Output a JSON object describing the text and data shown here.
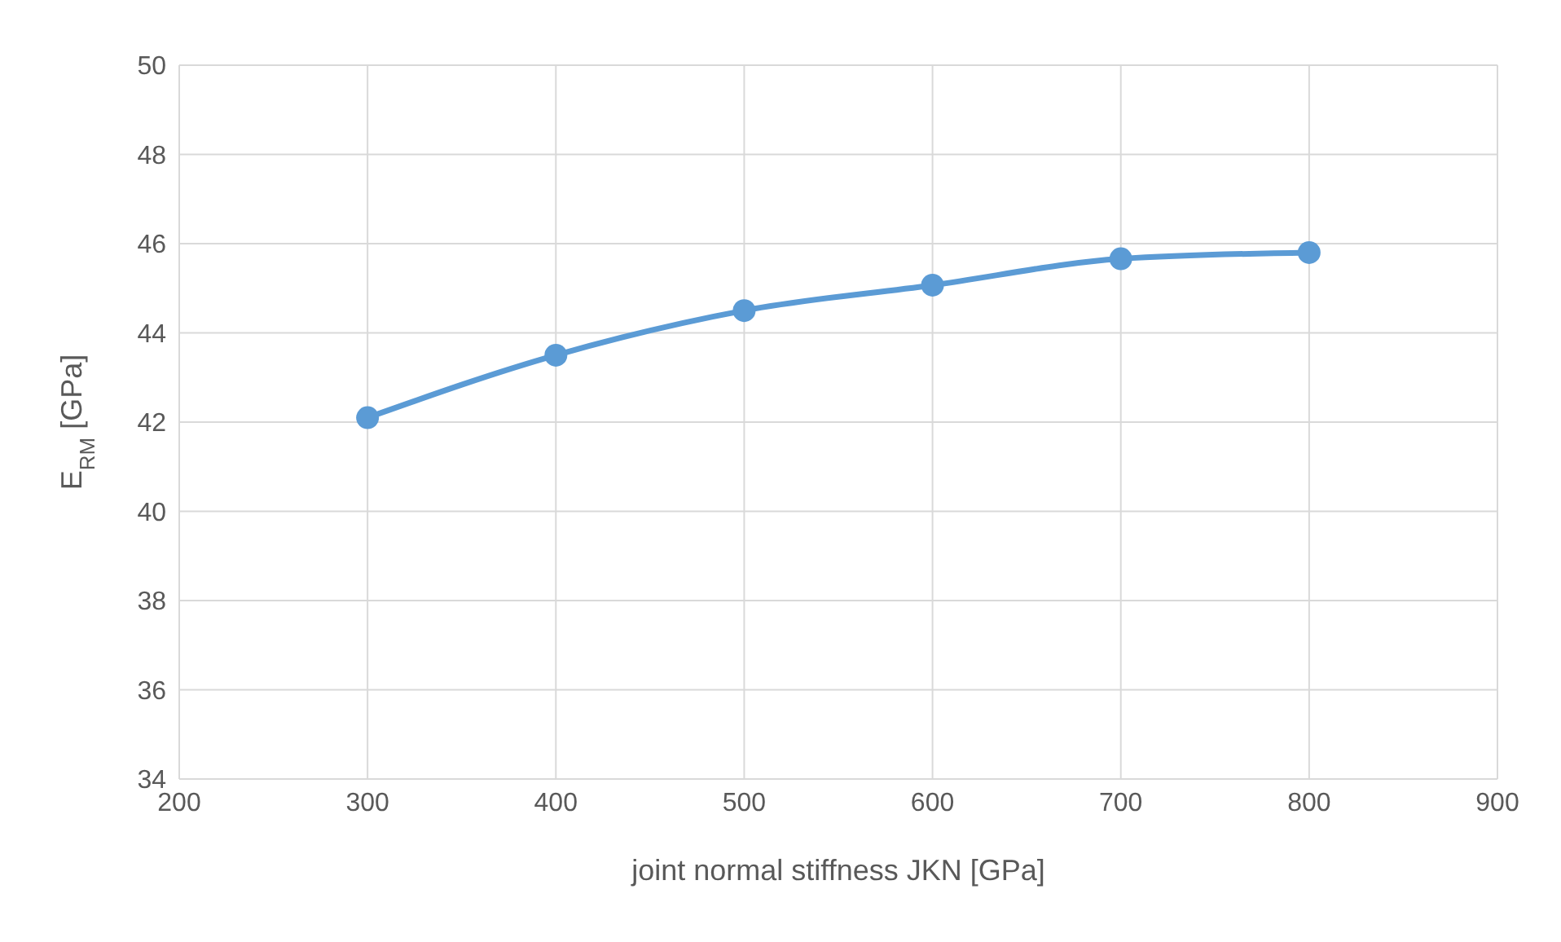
{
  "chart_data": {
    "type": "line",
    "xlabel": "joint normal stiffness JKN [GPa]",
    "ylabel": "E$_{RM}$ [GPa]",
    "x": [
      300,
      400,
      500,
      600,
      700,
      800
    ],
    "series": [
      {
        "color": "#5b9bd5",
        "values": [
          42.1,
          43.5,
          44.5,
          45.07,
          45.66,
          45.8
        ]
      }
    ],
    "xlim": [
      200,
      900
    ],
    "xticks": [
      200,
      300,
      400,
      500,
      600,
      700,
      800,
      900
    ],
    "ylim": [
      34,
      50
    ],
    "yticks": [
      34,
      36,
      38,
      40,
      42,
      44,
      46,
      48,
      50
    ],
    "grid": true,
    "marker": "circle",
    "line_style": "solid"
  }
}
